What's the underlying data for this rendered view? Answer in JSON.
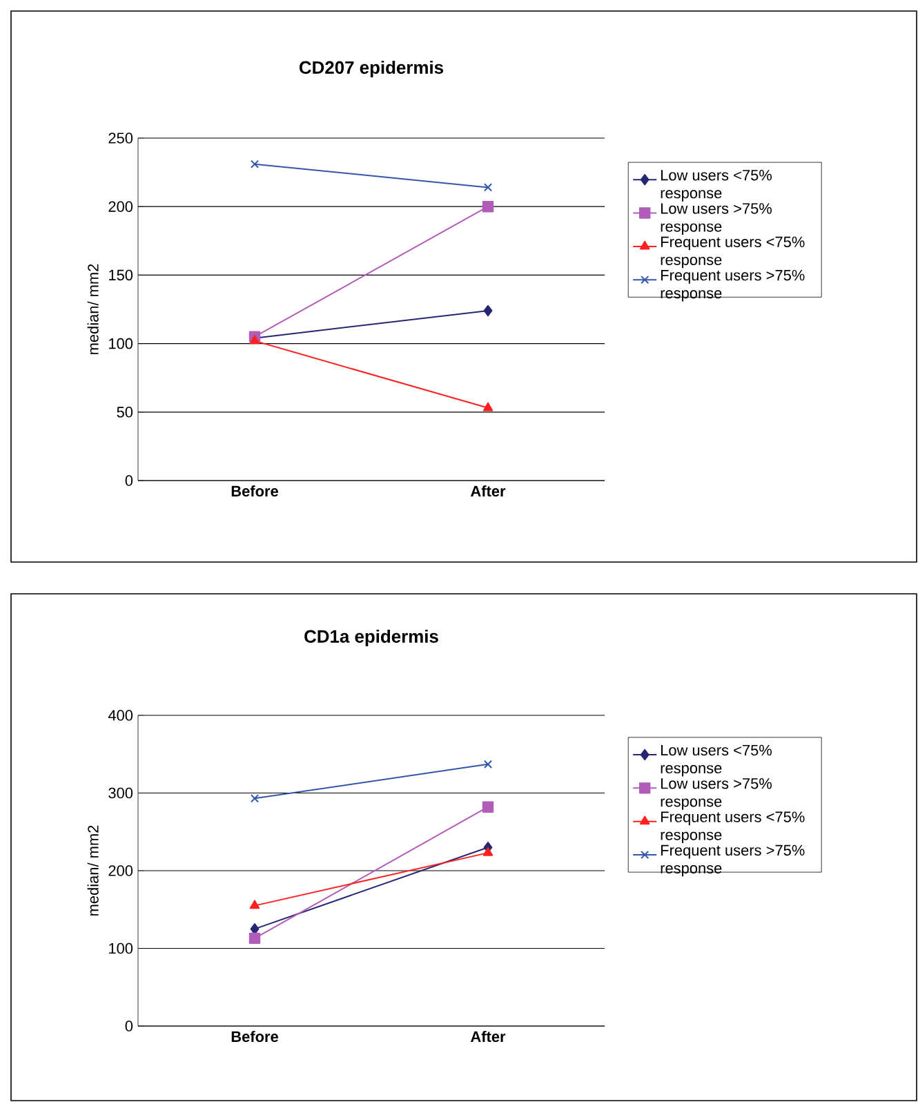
{
  "chart_data": [
    {
      "type": "line",
      "title": "CD207 epidermis",
      "ylabel": "median/ mm2",
      "categories": [
        "Before",
        "After"
      ],
      "ylim": [
        0,
        250
      ],
      "yticks": [
        0,
        50,
        100,
        150,
        200,
        250
      ],
      "grid": "y",
      "legend": "right",
      "series": [
        {
          "name": "Low users <75% response",
          "color": "#262673",
          "marker": "diamond",
          "values": [
            104,
            124
          ]
        },
        {
          "name": "Low users >75% response",
          "color": "#b05cb8",
          "marker": "square",
          "values": [
            105,
            200
          ]
        },
        {
          "name": "Frequent users <75% response",
          "color": "#ff2020",
          "marker": "triangle",
          "values": [
            102,
            53
          ]
        },
        {
          "name": "Frequent users >75% response",
          "color": "#3355aa",
          "marker": "cross",
          "values": [
            231,
            214
          ]
        }
      ]
    },
    {
      "type": "line",
      "title": "CD1a epidermis",
      "ylabel": "median/ mm2",
      "categories": [
        "Before",
        "After"
      ],
      "ylim": [
        0,
        400
      ],
      "yticks": [
        0,
        100,
        200,
        300,
        400
      ],
      "grid": "y",
      "legend": "right",
      "series": [
        {
          "name": "Low users <75% response",
          "color": "#262673",
          "marker": "diamond",
          "values": [
            125,
            230
          ]
        },
        {
          "name": "Low users >75% response",
          "color": "#b05cb8",
          "marker": "square",
          "values": [
            113,
            282
          ]
        },
        {
          "name": "Frequent users <75% response",
          "color": "#ff2020",
          "marker": "triangle",
          "values": [
            155,
            223
          ]
        },
        {
          "name": "Frequent users >75% response",
          "color": "#3355aa",
          "marker": "cross",
          "values": [
            293,
            337
          ]
        }
      ]
    }
  ]
}
